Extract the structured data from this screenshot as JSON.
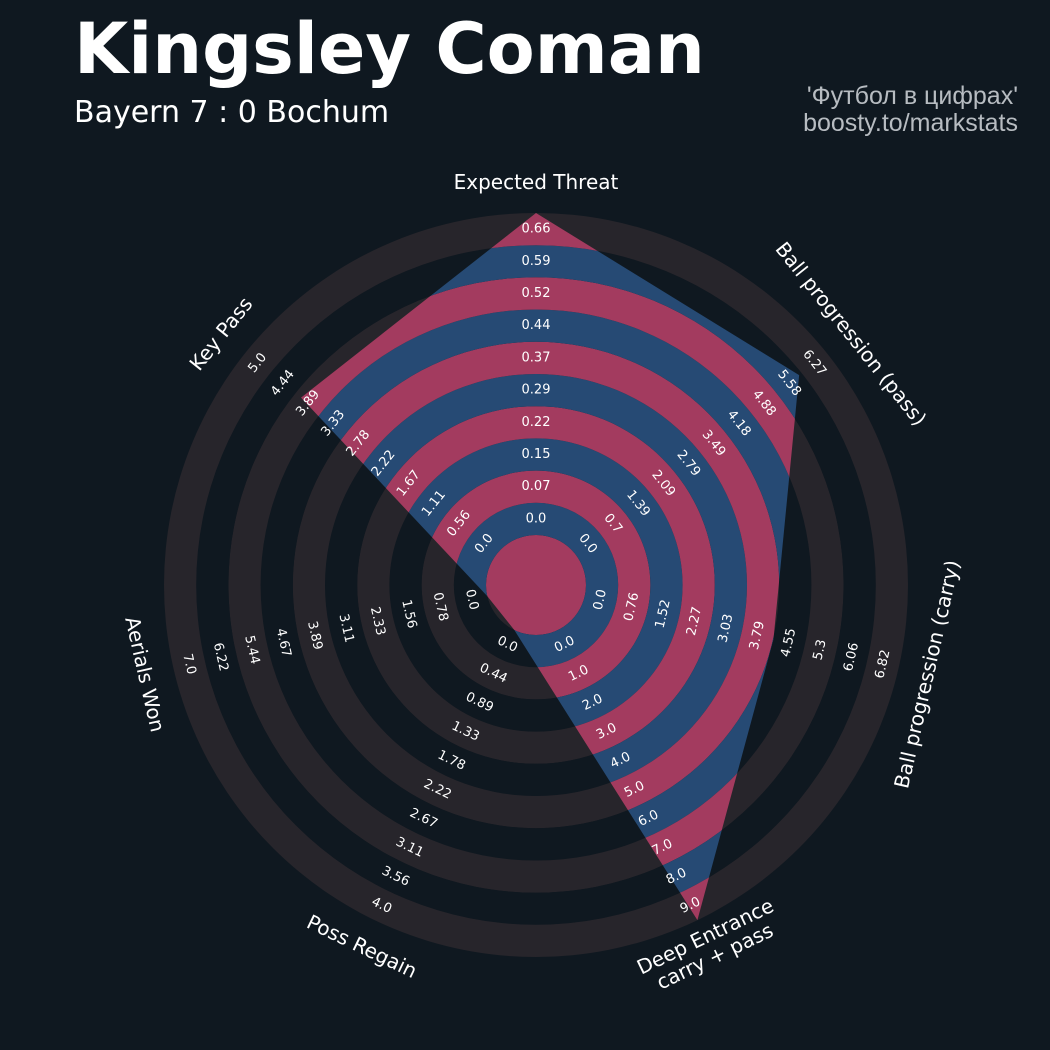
{
  "header": {
    "title": "Kingsley Coman",
    "subtitle": "Bayern 7 : 0 Bochum",
    "credit_line1": "'Футбол в цифрах'",
    "credit_line2": "boosty.to/markstats"
  },
  "colors": {
    "background": "#0f1820",
    "ring_light": "#27252b",
    "ring_dark": "#0f1820",
    "polygon_primary": "#264a74",
    "polygon_secondary": "#a33b5f",
    "label_text": "#ffffff"
  },
  "chart_data": {
    "type": "radar",
    "title": "Kingsley Coman",
    "subtitle": "Bayern 7 : 0 Bochum",
    "num_rings": 10,
    "axes": [
      {
        "label": "Expected Threat",
        "min": 0.0,
        "max": 0.66,
        "value": 0.66,
        "ticks": [
          "0.0",
          "0.07",
          "0.15",
          "0.22",
          "0.29",
          "0.37",
          "0.44",
          "0.52",
          "0.59",
          "0.66"
        ]
      },
      {
        "label": "Ball progression (pass)",
        "min": 0.0,
        "max": 6.27,
        "value": 5.58,
        "ticks": [
          "0.0",
          "0.7",
          "1.39",
          "2.09",
          "2.79",
          "3.49",
          "4.18",
          "4.88",
          "5.58",
          "6.27"
        ]
      },
      {
        "label": "Ball progression (carry)",
        "min": 0.0,
        "max": 6.82,
        "value": 4.1,
        "ticks": [
          "0.0",
          "0.76",
          "1.52",
          "2.27",
          "3.03",
          "3.79",
          "4.55",
          "5.3",
          "6.06",
          "6.82"
        ]
      },
      {
        "label": "Deep Entrance\ncarry + pass",
        "min": 0.0,
        "max": 9.0,
        "value": 9.0,
        "ticks": [
          "0.0",
          "1.0",
          "2.0",
          "3.0",
          "4.0",
          "5.0",
          "6.0",
          "7.0",
          "8.0",
          "9.0"
        ]
      },
      {
        "label": "Poss Regain",
        "min": 0.0,
        "max": 4.0,
        "value": 0.0,
        "ticks": [
          "0.0",
          "0.44",
          "0.89",
          "1.33",
          "1.78",
          "2.22",
          "2.67",
          "3.11",
          "3.56",
          "4.0"
        ]
      },
      {
        "label": "Aerials Won",
        "min": 0.0,
        "max": 7.0,
        "value": 0.0,
        "ticks": [
          "0.0",
          "0.78",
          "1.56",
          "2.33",
          "3.11",
          "3.89",
          "4.67",
          "5.44",
          "6.22",
          "7.0"
        ]
      },
      {
        "label": "Key Pass",
        "min": 0.0,
        "max": 5.0,
        "value": 3.89,
        "ticks": [
          "0.0",
          "0.56",
          "1.11",
          "1.67",
          "2.22",
          "2.78",
          "3.33",
          "3.89",
          "4.44",
          "5.0"
        ]
      }
    ]
  }
}
